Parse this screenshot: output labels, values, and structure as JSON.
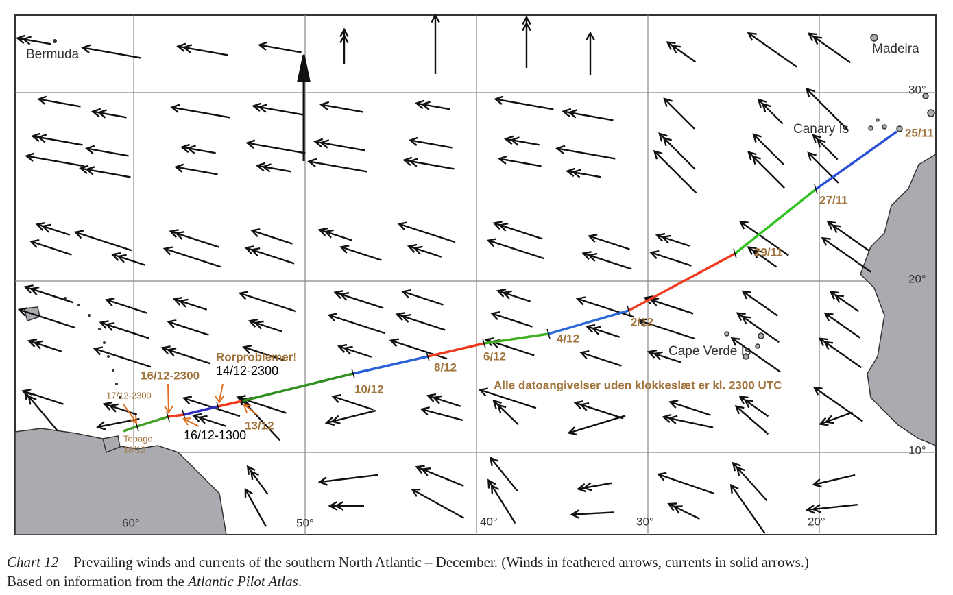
{
  "places": {
    "bermuda": "Bermuda",
    "madeira": "Madeira",
    "canary": "Canary Is",
    "cape_verde": "Cape Verde Is",
    "tobago": "Tobago"
  },
  "grid": {
    "longitudes": [
      "60°",
      "50°",
      "40°",
      "30°",
      "20°"
    ],
    "latitudes": [
      "30°",
      "20°",
      "10°"
    ]
  },
  "route": {
    "dates": [
      "25/11",
      "27/11",
      "29/11",
      "2/12",
      "4/12",
      "6/12",
      "8/12",
      "10/12",
      "13/12",
      "14/12-2300",
      "16/12-1300",
      "16/12-2300",
      "17/12-2300",
      "18/12"
    ],
    "problem": "Rorproblemer!",
    "note": "Alle datoangivelser uden klokkeslæt er kl. 2300 UTC"
  },
  "caption": {
    "label": "Chart 12",
    "text": "Prevailing winds and currents of the southern North Atlantic – December. (Winds in feathered arrows, currents in solid arrows.) Based on information from the ",
    "source": "Atlantic Pilot Atlas",
    "end": "."
  }
}
